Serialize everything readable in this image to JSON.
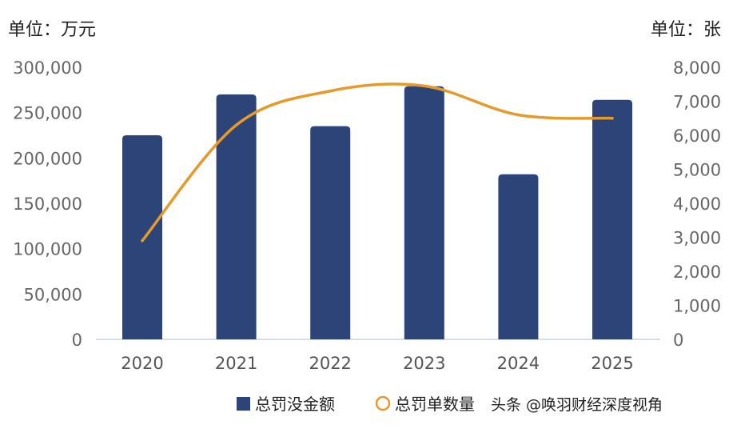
{
  "chart_data": {
    "type": "bar",
    "title": "",
    "left_axis_unit": "单位：万元",
    "right_axis_unit": "单位：张",
    "categories": [
      "2020",
      "2021",
      "2022",
      "2023",
      "2024",
      "2025"
    ],
    "series": [
      {
        "name": "总罚没金额",
        "type": "bar",
        "axis": "left",
        "color": "#2d4479",
        "values": [
          225000,
          270000,
          235000,
          279000,
          182000,
          264000
        ]
      },
      {
        "name": "总罚单数量",
        "type": "line",
        "axis": "right",
        "color": "#e69a2a",
        "values": [
          2900,
          6300,
          7300,
          7450,
          6600,
          6500
        ]
      }
    ],
    "left_ylim": [
      0,
      300000
    ],
    "left_yticks": [
      "0",
      "50,000",
      "100,000",
      "150,000",
      "200,000",
      "250,000",
      "300,000"
    ],
    "right_ylim": [
      0,
      8000
    ],
    "right_yticks": [
      "0",
      "1,000",
      "2,000",
      "3,000",
      "4,000",
      "5,000",
      "6,000",
      "7,000",
      "8,000"
    ],
    "grid": false,
    "legend_position": "bottom-right"
  },
  "watermark": "头条 @唤羽财经深度视角"
}
